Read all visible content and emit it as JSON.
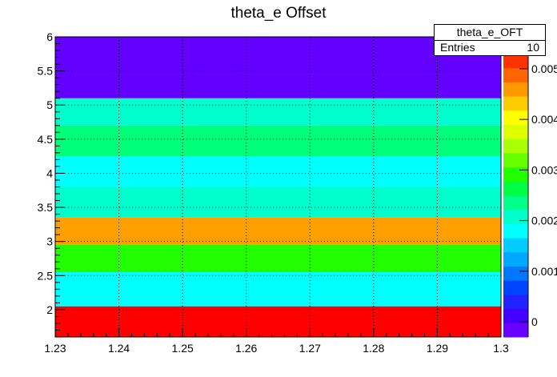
{
  "chart_data": {
    "type": "heatmap",
    "title": "theta_e Offset",
    "xlim": [
      1.23,
      1.3
    ],
    "ylim": [
      1.6,
      6.0
    ],
    "x_ticks": [
      "1.23",
      "1.24",
      "1.25",
      "1.26",
      "1.27",
      "1.28",
      "1.29",
      "1.3"
    ],
    "y_ticks": [
      "2",
      "2.5",
      "3",
      "3.5",
      "4",
      "4.5",
      "5",
      "5.5",
      "6"
    ],
    "z_ticks": [
      "0",
      "0.001",
      "0.002",
      "0.003",
      "0.004",
      "0.005"
    ],
    "z_range": [
      -0.0003,
      0.0053
    ],
    "grid": true,
    "bands": [
      {
        "y_min": 1.6,
        "y_max": 2.05,
        "z": 0.0053
      },
      {
        "y_min": 2.05,
        "y_max": 2.55,
        "z": 0.0021
      },
      {
        "y_min": 2.55,
        "y_max": 2.95,
        "z": 0.0034
      },
      {
        "y_min": 2.95,
        "y_max": 3.35,
        "z": 0.005
      },
      {
        "y_min": 3.35,
        "y_max": 3.8,
        "z": 0.0025
      },
      {
        "y_min": 3.8,
        "y_max": 4.25,
        "z": 0.0021
      },
      {
        "y_min": 4.25,
        "y_max": 4.7,
        "z": 0.003
      },
      {
        "y_min": 4.7,
        "y_max": 5.1,
        "z": 0.0025
      },
      {
        "y_min": 5.1,
        "y_max": 6.0,
        "z": -0.0003
      }
    ],
    "palette": [
      "#6a00ff",
      "#4400ff",
      "#2222ff",
      "#0044ff",
      "#0077ff",
      "#00a8ff",
      "#00ccff",
      "#00ffff",
      "#00ffcc",
      "#00ff88",
      "#00ff44",
      "#22ff00",
      "#66ff00",
      "#aaff00",
      "#ddff00",
      "#ffff00",
      "#ffcc00",
      "#ff9900",
      "#ff6600",
      "#ff3300"
    ],
    "band_colors": [
      "#ff0000",
      "#00ffff",
      "#22ff00",
      "#ff9f00",
      "#00ffcc",
      "#00ffff",
      "#00ff7a",
      "#00ffcc",
      "#6300ff"
    ]
  },
  "stats": {
    "name": "theta_e_OFT",
    "entries_label": "Entries",
    "entries_value": "10"
  }
}
